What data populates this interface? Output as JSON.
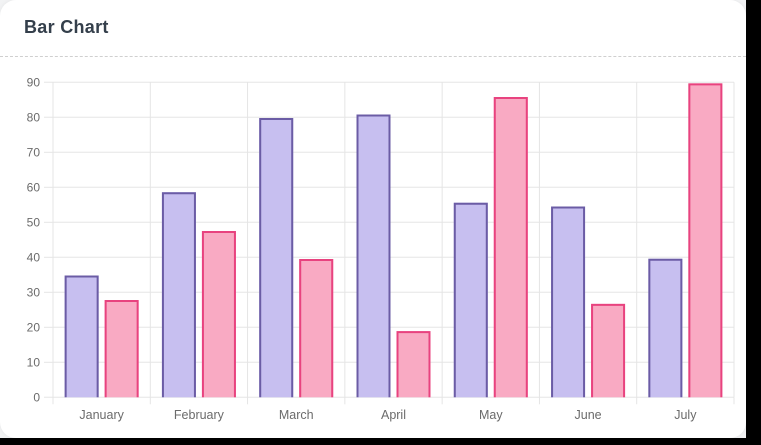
{
  "header": {
    "title": "Bar Chart"
  },
  "colors": {
    "card_background": "#ffffff",
    "page_background": "#f2f3f4",
    "outer_background": "#000000",
    "title_text": "#343f4b",
    "axis_text": "#6b6b6b",
    "gridline": "#e5e5e5",
    "header_divider": "#cfcfcf",
    "series_purple_fill": "#c7bff0",
    "series_purple_border": "#6b5ca5",
    "series_pink_fill": "#f9aac3",
    "series_pink_border": "#e8437f"
  },
  "chart_data": {
    "type": "bar",
    "title": "Bar Chart",
    "categories": [
      "January",
      "February",
      "March",
      "April",
      "May",
      "June",
      "July"
    ],
    "series": [
      {
        "name": "purple",
        "fill": "#c7bff0",
        "border": "#6b5ca5",
        "values": [
          34.8,
          58.6,
          79.8,
          80.8,
          55.6,
          54.5,
          39.6
        ]
      },
      {
        "name": "pink",
        "fill": "#f9aac3",
        "border": "#e8437f",
        "values": [
          27.8,
          47.5,
          39.5,
          18.9,
          85.8,
          26.7,
          89.7
        ]
      }
    ],
    "xlabel": "",
    "ylabel": "",
    "ylim": [
      0,
      90
    ],
    "yticks": [
      0,
      10,
      20,
      30,
      40,
      50,
      60,
      70,
      80,
      90
    ],
    "grid": true,
    "legend_position": "none"
  }
}
